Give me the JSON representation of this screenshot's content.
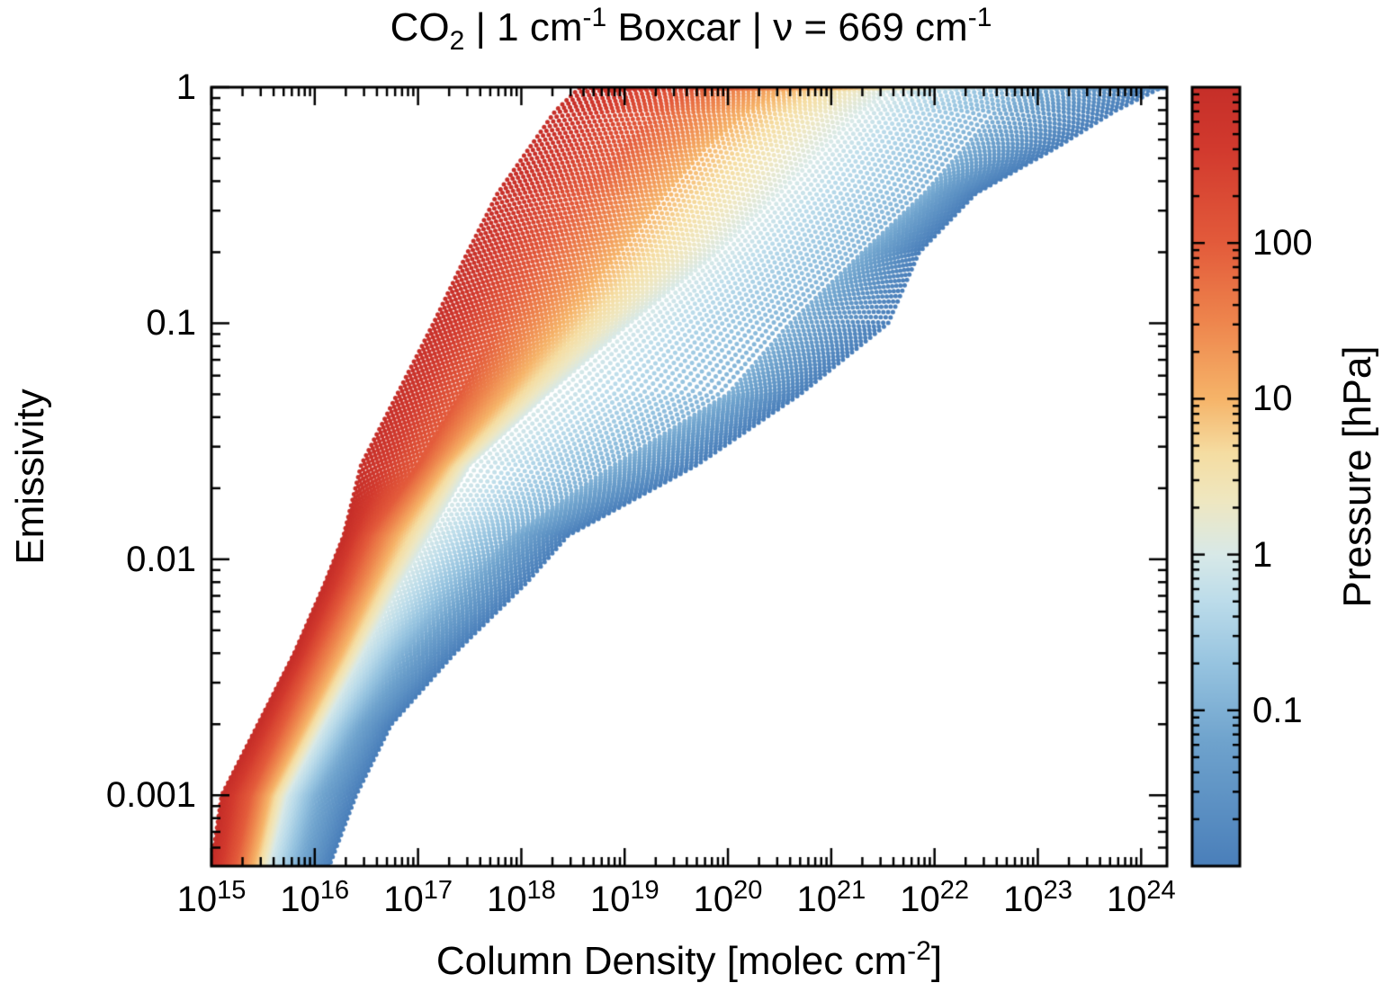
{
  "figure": {
    "background": "#ffffff",
    "frame_color": "#000000",
    "title_segments": [
      {
        "text": "CO"
      },
      {
        "text": "2",
        "style": "sub"
      },
      {
        "text": " | 1 cm"
      },
      {
        "text": "-1",
        "style": "sup"
      },
      {
        "text": " Boxcar | ν = 669 cm"
      },
      {
        "text": "-1",
        "style": "sup"
      }
    ]
  },
  "axes": {
    "x": {
      "label_segments": [
        {
          "text": "Column Density [molec cm"
        },
        {
          "text": "-2",
          "style": "sup"
        },
        {
          "text": "]"
        }
      ],
      "scale": "log",
      "tick_base": "10",
      "tick_exponents": [
        15,
        16,
        17,
        18,
        19,
        20,
        21,
        22,
        23,
        24
      ]
    },
    "y": {
      "label": "Emissivity",
      "scale": "log",
      "tick_labels": [
        "1",
        "0.1",
        "0.01",
        "0.001"
      ],
      "tick_values": [
        1,
        0.1,
        0.01,
        0.001
      ]
    }
  },
  "colorbar": {
    "label": "Pressure [hPa]",
    "scale": "log",
    "range_hPa": [
      0.01,
      1000
    ],
    "tick_labels": [
      "100",
      "10",
      "1",
      "0.1"
    ],
    "tick_values": [
      100,
      10,
      1,
      0.1
    ],
    "palette_stops": [
      {
        "t": 0.0,
        "color": "#c62f29"
      },
      {
        "t": 0.08,
        "color": "#d23a2e"
      },
      {
        "t": 0.2,
        "color": "#e35b3b"
      },
      {
        "t": 0.3,
        "color": "#ee854d"
      },
      {
        "t": 0.4,
        "color": "#f6b469"
      },
      {
        "t": 0.47,
        "color": "#f5dda2"
      },
      {
        "t": 0.53,
        "color": "#efe7c0"
      },
      {
        "t": 0.6,
        "color": "#d8e9e8"
      },
      {
        "t": 0.66,
        "color": "#bcdcea"
      },
      {
        "t": 0.74,
        "color": "#97c4e0"
      },
      {
        "t": 0.84,
        "color": "#6fa3cd"
      },
      {
        "t": 1.0,
        "color": "#4a7fba"
      }
    ]
  },
  "chart_data": {
    "type": "scatter",
    "title": "CO2 | 1 cm-1 Boxcar | nu = 669 cm-1",
    "xlabel": "Column Density [molec cm-2]",
    "ylabel": "Emissivity",
    "color_label": "Pressure [hPa]",
    "x_log_range": [
      15,
      24.25
    ],
    "y_log_range": [
      -3.3,
      0
    ],
    "color_log_range_hPa": [
      -2,
      3
    ],
    "grid": false,
    "marker": "filled-circle",
    "marker_size_px": 5,
    "n_pressure_levels_displayed": 96,
    "eps_log10_grid": [
      -3.3,
      -3.0,
      -2.7,
      -2.4,
      -2.1,
      -1.9,
      -1.6,
      -1.3,
      -1.0,
      -0.7,
      -0.45,
      -0.25,
      -0.1,
      0.0
    ],
    "series": [
      {
        "pressure_hPa": 1000,
        "log10_P": 3,
        "log10_N": [
          15.0,
          15.1,
          15.45,
          15.8,
          16.1,
          16.28,
          16.45,
          16.8,
          17.15,
          17.48,
          17.77,
          18.09,
          18.33,
          18.57
        ]
      },
      {
        "pressure_hPa": 100,
        "log10_P": 2,
        "log10_N": [
          15.22,
          15.36,
          15.68,
          16.0,
          16.33,
          16.52,
          17.0,
          17.4,
          17.77,
          18.2,
          18.6,
          19.0,
          19.3,
          19.65
        ]
      },
      {
        "pressure_hPa": 10,
        "log10_P": 1,
        "log10_N": [
          15.4,
          15.55,
          15.9,
          16.25,
          16.58,
          16.8,
          17.26,
          17.85,
          18.4,
          18.95,
          19.4,
          19.8,
          20.2,
          20.6
        ]
      },
      {
        "pressure_hPa": 1,
        "log10_P": 0,
        "log10_N": [
          15.55,
          15.72,
          16.08,
          16.45,
          16.82,
          17.1,
          17.5,
          18.25,
          19.05,
          19.9,
          20.5,
          20.95,
          21.3,
          21.6
        ]
      },
      {
        "pressure_hPa": 0.1,
        "log10_P": -1,
        "log10_N": [
          15.82,
          16.0,
          16.38,
          16.85,
          17.45,
          17.9,
          18.9,
          20.0,
          20.6,
          21.3,
          21.9,
          22.3,
          22.6,
          22.95
        ]
      },
      {
        "pressure_hPa": 0.01,
        "log10_P": -2,
        "log10_N": [
          16.14,
          16.4,
          16.74,
          17.35,
          18.05,
          18.45,
          19.7,
          20.7,
          21.55,
          21.85,
          22.4,
          23.2,
          23.75,
          24.2
        ]
      }
    ]
  }
}
